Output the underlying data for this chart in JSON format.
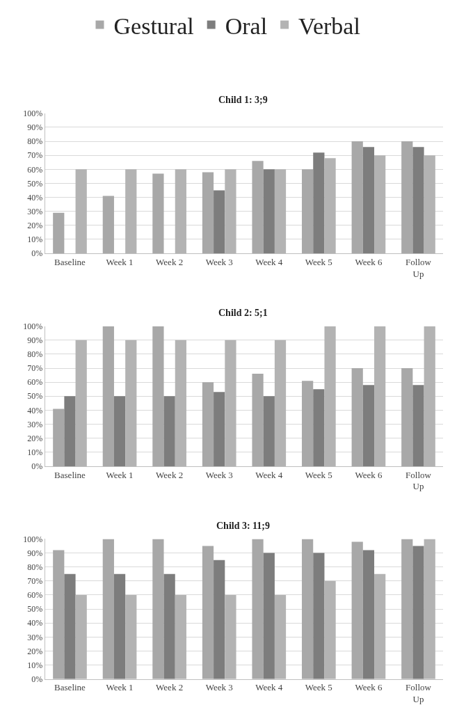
{
  "chart_data": [
    {
      "type": "bar",
      "title": "Child 1: 3;9",
      "categories": [
        "Baseline",
        "Week 1",
        "Week 2",
        "Week 3",
        "Week 4",
        "Week 5",
        "Week 6",
        "Follow Up"
      ],
      "series": [
        {
          "name": "Gestural",
          "color": "#a8a8a8",
          "values": [
            29,
            41,
            57,
            58,
            66,
            60,
            80,
            80
          ]
        },
        {
          "name": "Oral",
          "color": "#7d7d7d",
          "values": [
            0,
            0,
            0,
            45,
            60,
            72,
            76,
            76
          ]
        },
        {
          "name": "Verbal",
          "color": "#b3b3b3",
          "values": [
            60,
            60,
            60,
            60,
            60,
            68,
            70,
            70
          ]
        }
      ],
      "ylim": [
        0,
        100
      ],
      "yticks": [
        {
          "value": 0,
          "label": "0%"
        },
        {
          "value": 10,
          "label": "10%"
        },
        {
          "value": 20,
          "label": "20%"
        },
        {
          "value": 30,
          "label": "30%"
        },
        {
          "value": 40,
          "label": "40%"
        },
        {
          "value": 50,
          "label": "50%"
        },
        {
          "value": 60,
          "label": "60%"
        },
        {
          "value": 70,
          "label": "70%"
        },
        {
          "value": 80,
          "label": "80%"
        },
        {
          "value": 90,
          "label": "90%"
        },
        {
          "value": 100,
          "label": "100%"
        }
      ],
      "grid": "y",
      "legend": "top"
    },
    {
      "type": "bar",
      "title": "Child 2: 5;1",
      "categories": [
        "Baseline",
        "Week 1",
        "Week 2",
        "Week 3",
        "Week 4",
        "Week 5",
        "Week 6",
        "Follow Up"
      ],
      "series": [
        {
          "color": "#a8a8a8",
          "values": [
            41,
            100,
            100,
            60,
            66,
            61,
            70,
            70
          ]
        },
        {
          "color": "#7d7d7d",
          "values": [
            50,
            50,
            50,
            53,
            50,
            55,
            58,
            58
          ]
        },
        {
          "color": "#b3b3b3",
          "values": [
            90,
            90,
            90,
            90,
            90,
            100,
            100,
            100
          ]
        }
      ],
      "ylim": [
        0,
        100
      ],
      "yticks": [
        {
          "value": 0,
          "label": "0%"
        },
        {
          "value": 10,
          "label": "10%"
        },
        {
          "value": 20,
          "label": "20%"
        },
        {
          "value": 30,
          "label": "30%"
        },
        {
          "value": 40,
          "label": "40%"
        },
        {
          "value": 50,
          "label": "50%"
        },
        {
          "value": 60,
          "label": "60%"
        },
        {
          "value": 70,
          "label": "70%"
        },
        {
          "value": 80,
          "label": "80%"
        },
        {
          "value": 90,
          "label": "90%"
        },
        {
          "value": 100,
          "label": "100%"
        }
      ],
      "grid": "y"
    },
    {
      "type": "bar",
      "title": "Child 3: 11;9",
      "categories": [
        "Baseline",
        "Week 1",
        "Week 2",
        "Week 3",
        "Week 4",
        "Week 5",
        "Week 6",
        "Follow Up"
      ],
      "series": [
        {
          "color": "#a8a8a8",
          "values": [
            92,
            100,
            100,
            95,
            100,
            100,
            98,
            100
          ]
        },
        {
          "color": "#7d7d7d",
          "values": [
            75,
            75,
            75,
            85,
            90,
            90,
            92,
            95
          ]
        },
        {
          "color": "#b3b3b3",
          "values": [
            60,
            60,
            60,
            60,
            60,
            70,
            75,
            100
          ]
        }
      ],
      "ylim": [
        0,
        100
      ],
      "yticks": [
        {
          "value": 0,
          "label": "0%"
        },
        {
          "value": 10,
          "label": "10%"
        },
        {
          "value": 20,
          "label": "20%"
        },
        {
          "value": 30,
          "label": "30%"
        },
        {
          "value": 40,
          "label": "40%"
        },
        {
          "value": 50,
          "label": "50%"
        },
        {
          "value": 60,
          "label": "60%"
        },
        {
          "value": 70,
          "label": "70%"
        },
        {
          "value": 80,
          "label": "80%"
        },
        {
          "value": 90,
          "label": "90%"
        },
        {
          "value": 100,
          "label": "100%"
        }
      ],
      "grid": "y"
    }
  ]
}
